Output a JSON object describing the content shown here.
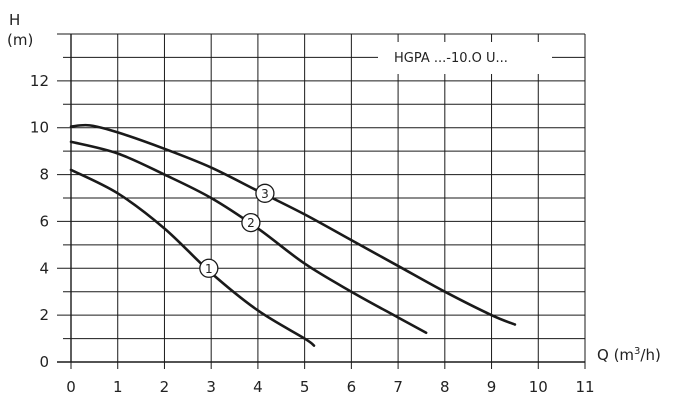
{
  "chart_data": {
    "type": "line",
    "title": "",
    "model_label": "HGPA ...-10.O U...",
    "ylabel_symbol": "H",
    "ylabel_unit": "(m)",
    "xlabel_prefix": "Q (m",
    "xlabel_sup": "3",
    "xlabel_suffix": "/h)",
    "xlim": [
      0,
      11
    ],
    "ylim": [
      0,
      14
    ],
    "x_ticks": [
      "0",
      "1",
      "2",
      "3",
      "4",
      "5",
      "6",
      "7",
      "8",
      "9",
      "10",
      "11"
    ],
    "y_ticks": [
      "0",
      "2",
      "4",
      "6",
      "8",
      "10",
      "12"
    ],
    "grid": true,
    "colors": {
      "curve": "#1a1a1a",
      "grid": "#1a1a1a",
      "background": "#ffffff"
    },
    "series": [
      {
        "name": "1",
        "x": [
          0,
          1,
          2,
          3,
          4,
          5,
          5.2
        ],
        "y": [
          8.2,
          7.2,
          5.7,
          3.8,
          2.2,
          1.0,
          0.7
        ],
        "marker": {
          "x": 2.95,
          "y": 4.0
        }
      },
      {
        "name": "2",
        "x": [
          0,
          1,
          2,
          3,
          4,
          5,
          6,
          7,
          7.6
        ],
        "y": [
          9.4,
          8.9,
          8.0,
          7.0,
          5.7,
          4.2,
          3.0,
          1.9,
          1.25
        ],
        "marker": {
          "x": 3.85,
          "y": 5.95
        }
      },
      {
        "name": "3",
        "x": [
          0,
          0.4,
          1,
          2,
          3,
          4,
          5,
          6,
          7,
          8,
          9,
          9.5
        ],
        "y": [
          10.05,
          10.1,
          9.8,
          9.1,
          8.3,
          7.3,
          6.3,
          5.2,
          4.1,
          3.0,
          2.0,
          1.6
        ],
        "marker": {
          "x": 4.15,
          "y": 7.2
        }
      }
    ]
  }
}
